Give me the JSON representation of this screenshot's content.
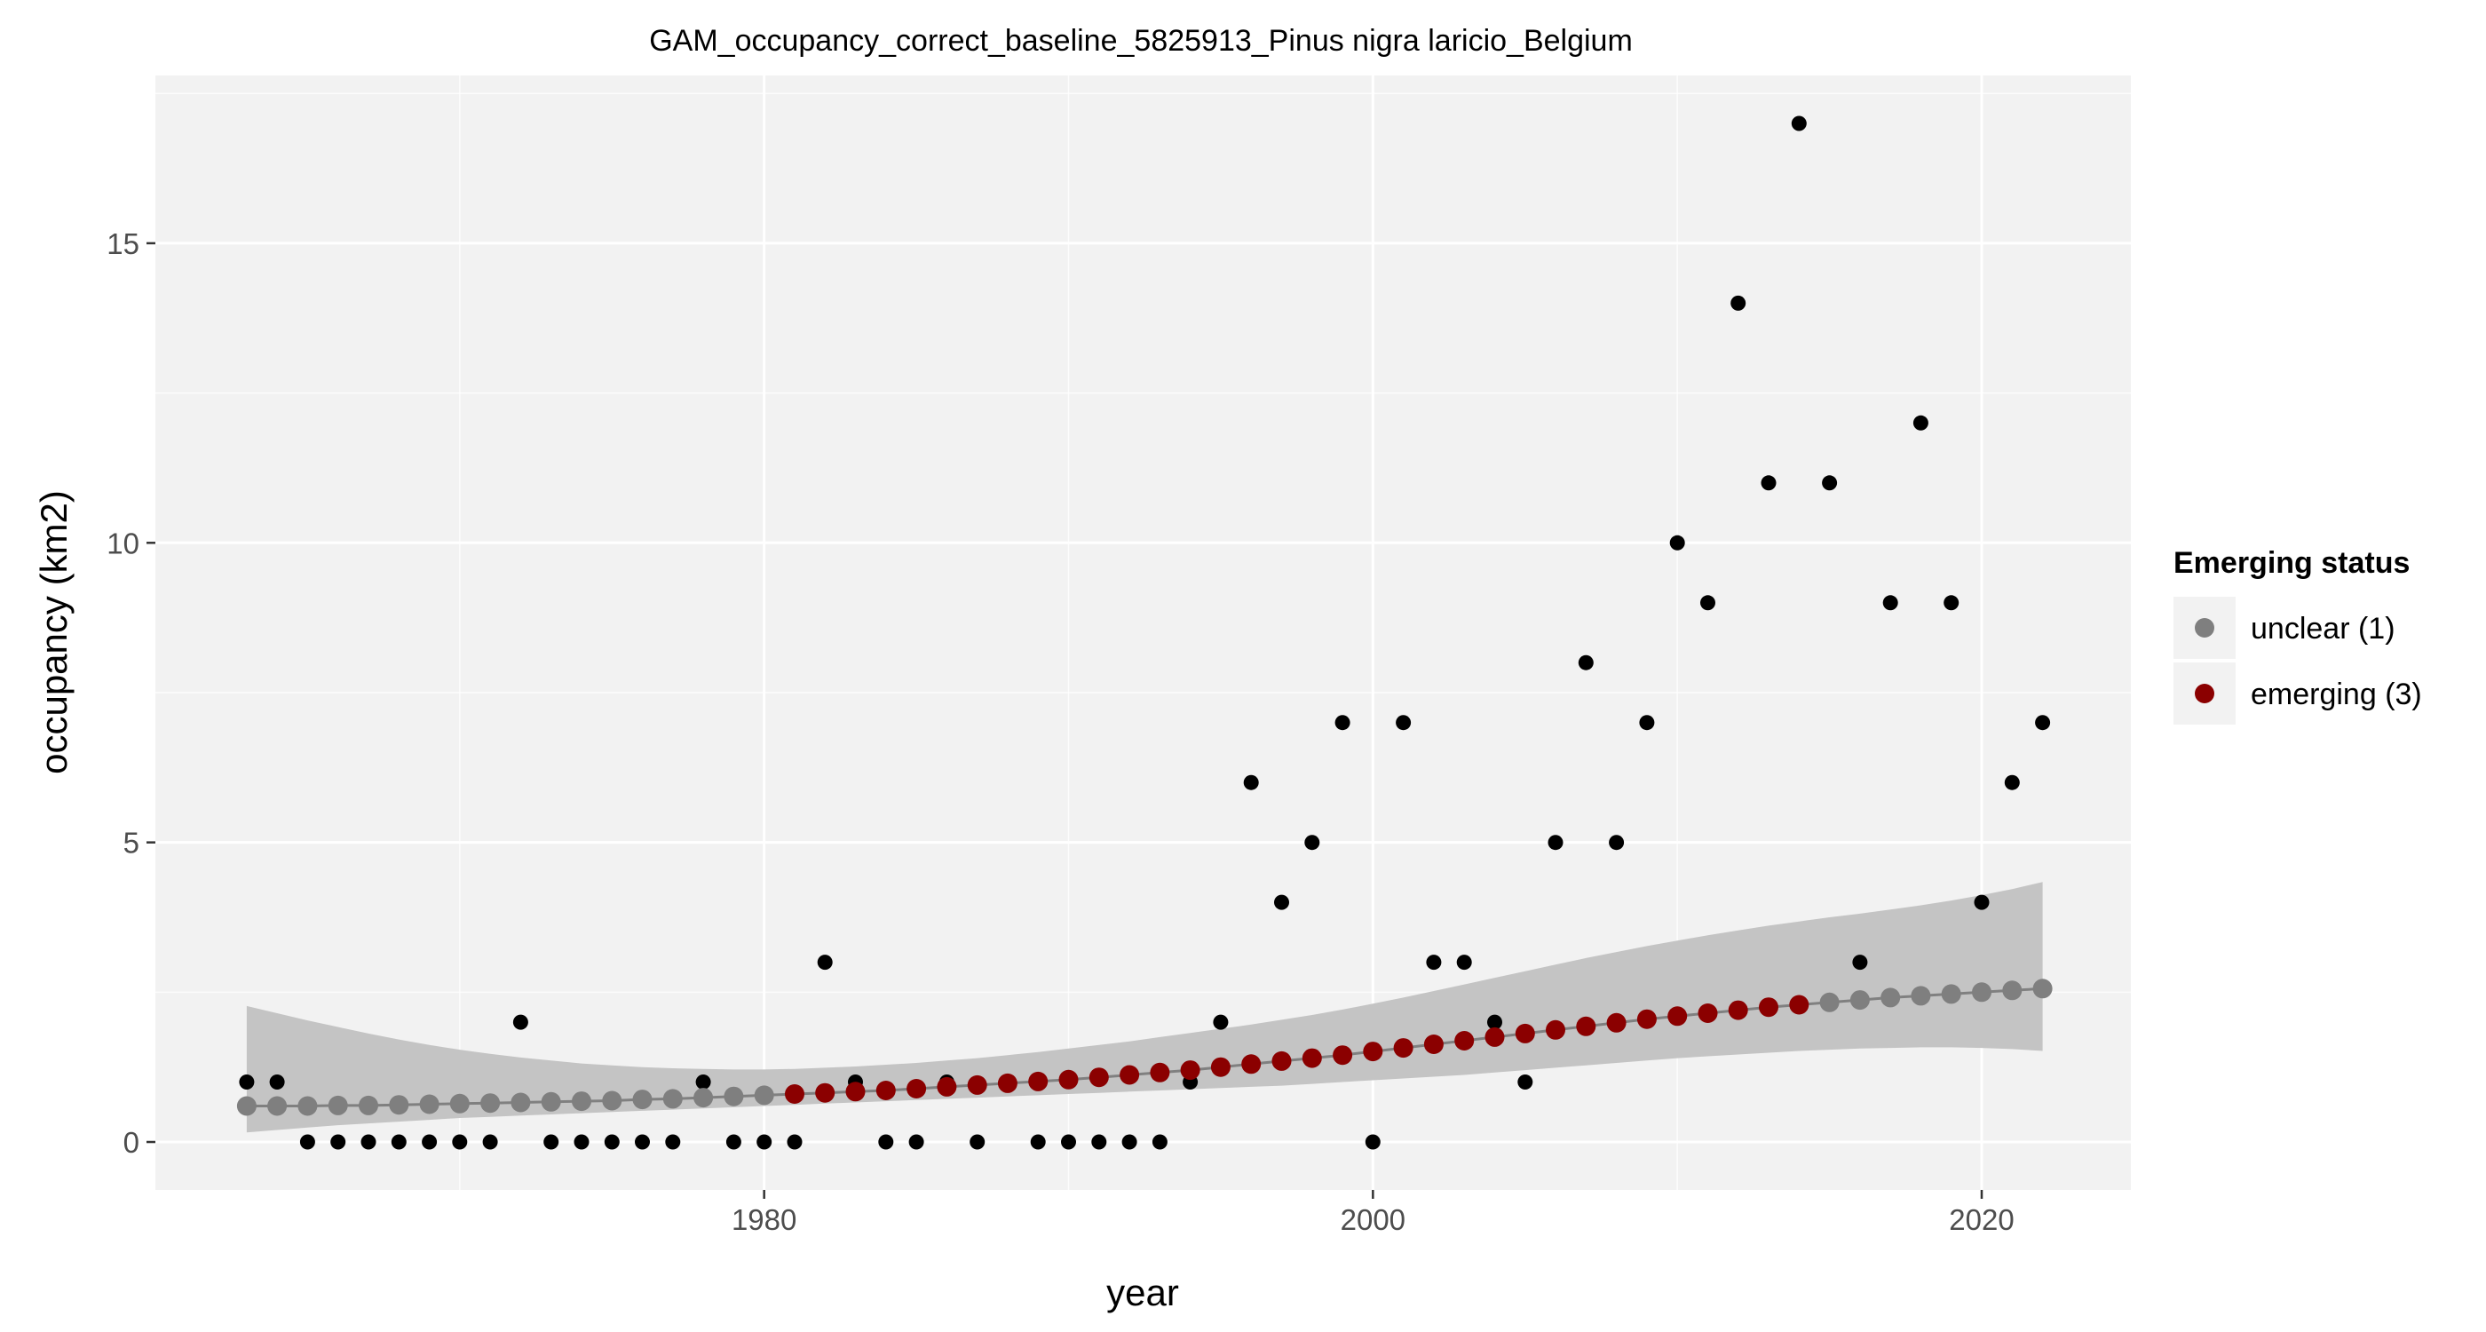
{
  "chart_data": {
    "type": "scatter",
    "title": "GAM_occupancy_correct_baseline_5825913_Pinus nigra laricio_Belgium",
    "xlabel": "year",
    "ylabel": "occupancy (km2)",
    "xlim": [
      1960.0,
      2024.9
    ],
    "ylim": [
      -0.8,
      17.8
    ],
    "x_ticks": [
      1980,
      2000,
      2020
    ],
    "y_ticks": [
      0,
      5,
      10,
      15
    ],
    "grid": true,
    "legend": {
      "title": "Emerging status",
      "position": "right",
      "entries": [
        {
          "label": "unclear (1)",
          "color": "#7f7f7f"
        },
        {
          "label": "emerging (3)",
          "color": "#8b0000"
        }
      ]
    },
    "colors": {
      "panel": "#f2f2f2",
      "grid": "#ffffff",
      "band": "#c4c4c4",
      "fit_line": "#808080",
      "observed": "#000000"
    },
    "observed": {
      "x": [
        1963,
        1964,
        1965,
        1966,
        1967,
        1968,
        1969,
        1970,
        1971,
        1972,
        1973,
        1974,
        1975,
        1976,
        1977,
        1978,
        1979,
        1980,
        1981,
        1982,
        1983,
        1984,
        1985,
        1986,
        1987,
        1988,
        1989,
        1990,
        1991,
        1992,
        1993,
        1994,
        1995,
        1996,
        1997,
        1998,
        1999,
        2000,
        2001,
        2002,
        2003,
        2004,
        2005,
        2006,
        2007,
        2008,
        2009,
        2010,
        2011,
        2012,
        2013,
        2014,
        2015,
        2016,
        2017,
        2018,
        2019,
        2020,
        2021,
        2022
      ],
      "y": [
        1,
        1,
        0,
        0,
        0,
        0,
        0,
        0,
        0,
        2,
        0,
        0,
        0,
        0,
        0,
        1,
        0,
        0,
        0,
        3,
        1,
        0,
        0,
        1,
        0,
        1,
        0,
        0,
        0,
        0,
        0,
        1,
        2,
        6,
        4,
        5,
        7,
        0,
        7,
        3,
        3,
        2,
        1,
        5,
        8,
        5,
        7,
        10,
        9,
        14,
        11,
        17,
        11,
        3,
        9,
        12,
        9,
        4,
        6,
        7
      ]
    },
    "fit": {
      "x": [
        1963,
        1964,
        1965,
        1966,
        1967,
        1968,
        1969,
        1970,
        1971,
        1972,
        1973,
        1974,
        1975,
        1976,
        1977,
        1978,
        1979,
        1980,
        1981,
        1982,
        1983,
        1984,
        1985,
        1986,
        1987,
        1988,
        1989,
        1990,
        1991,
        1992,
        1993,
        1994,
        1995,
        1996,
        1997,
        1998,
        1999,
        2000,
        2001,
        2002,
        2003,
        2004,
        2005,
        2006,
        2007,
        2008,
        2009,
        2010,
        2011,
        2012,
        2013,
        2014,
        2015,
        2016,
        2017,
        2018,
        2019,
        2020,
        2021,
        2022
      ],
      "y": [
        0.6,
        0.6,
        0.6,
        0.61,
        0.61,
        0.62,
        0.63,
        0.64,
        0.65,
        0.66,
        0.67,
        0.68,
        0.69,
        0.71,
        0.72,
        0.74,
        0.76,
        0.78,
        0.8,
        0.82,
        0.84,
        0.86,
        0.89,
        0.92,
        0.95,
        0.98,
        1.01,
        1.04,
        1.08,
        1.12,
        1.16,
        1.2,
        1.25,
        1.3,
        1.35,
        1.4,
        1.45,
        1.51,
        1.57,
        1.63,
        1.69,
        1.75,
        1.81,
        1.87,
        1.93,
        1.99,
        2.05,
        2.1,
        2.15,
        2.2,
        2.25,
        2.29,
        2.33,
        2.37,
        2.41,
        2.44,
        2.47,
        2.5,
        2.53,
        2.56
      ],
      "lower": [
        0.16,
        0.2,
        0.24,
        0.28,
        0.31,
        0.34,
        0.37,
        0.4,
        0.42,
        0.44,
        0.46,
        0.48,
        0.5,
        0.52,
        0.54,
        0.56,
        0.58,
        0.6,
        0.62,
        0.64,
        0.66,
        0.68,
        0.7,
        0.72,
        0.74,
        0.76,
        0.78,
        0.8,
        0.82,
        0.84,
        0.86,
        0.88,
        0.9,
        0.92,
        0.94,
        0.97,
        1.0,
        1.03,
        1.06,
        1.09,
        1.12,
        1.16,
        1.2,
        1.24,
        1.28,
        1.32,
        1.36,
        1.4,
        1.43,
        1.46,
        1.49,
        1.52,
        1.54,
        1.56,
        1.57,
        1.58,
        1.58,
        1.57,
        1.55,
        1.52
      ],
      "upper": [
        2.27,
        2.15,
        2.03,
        1.92,
        1.81,
        1.71,
        1.62,
        1.54,
        1.47,
        1.41,
        1.36,
        1.31,
        1.28,
        1.25,
        1.23,
        1.22,
        1.21,
        1.21,
        1.22,
        1.24,
        1.26,
        1.29,
        1.32,
        1.36,
        1.4,
        1.45,
        1.5,
        1.56,
        1.62,
        1.68,
        1.75,
        1.82,
        1.89,
        1.96,
        2.04,
        2.12,
        2.21,
        2.31,
        2.41,
        2.52,
        2.63,
        2.74,
        2.85,
        2.96,
        3.07,
        3.17,
        3.27,
        3.36,
        3.45,
        3.53,
        3.61,
        3.68,
        3.75,
        3.81,
        3.88,
        3.95,
        4.03,
        4.12,
        4.22,
        4.34
      ],
      "status": [
        "unclear (1)",
        "unclear (1)",
        "unclear (1)",
        "unclear (1)",
        "unclear (1)",
        "unclear (1)",
        "unclear (1)",
        "unclear (1)",
        "unclear (1)",
        "unclear (1)",
        "unclear (1)",
        "unclear (1)",
        "unclear (1)",
        "unclear (1)",
        "unclear (1)",
        "unclear (1)",
        "unclear (1)",
        "unclear (1)",
        "emerging (3)",
        "emerging (3)",
        "emerging (3)",
        "emerging (3)",
        "emerging (3)",
        "emerging (3)",
        "emerging (3)",
        "emerging (3)",
        "emerging (3)",
        "emerging (3)",
        "emerging (3)",
        "emerging (3)",
        "emerging (3)",
        "emerging (3)",
        "emerging (3)",
        "emerging (3)",
        "emerging (3)",
        "emerging (3)",
        "emerging (3)",
        "emerging (3)",
        "emerging (3)",
        "emerging (3)",
        "emerging (3)",
        "emerging (3)",
        "emerging (3)",
        "emerging (3)",
        "emerging (3)",
        "emerging (3)",
        "emerging (3)",
        "emerging (3)",
        "emerging (3)",
        "emerging (3)",
        "emerging (3)",
        "emerging (3)",
        "unclear (1)",
        "unclear (1)",
        "unclear (1)",
        "unclear (1)",
        "unclear (1)",
        "unclear (1)",
        "unclear (1)",
        "unclear (1)"
      ]
    }
  }
}
